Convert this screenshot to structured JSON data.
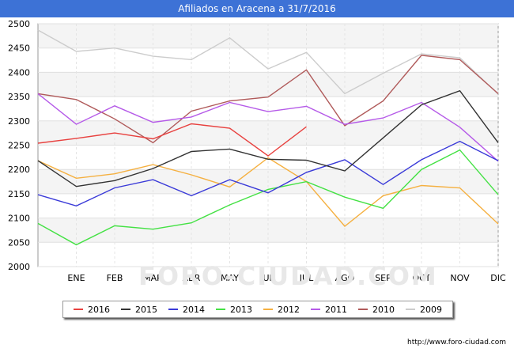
{
  "title": "Afiliados en Aracena a 31/7/2016",
  "watermark": "FORO-CIUDAD.COM",
  "source": "http://www.foro-ciudad.com",
  "chart_data": {
    "type": "line",
    "title": "Afiliados en Aracena a 31/7/2016",
    "xlabel": "",
    "ylabel": "",
    "categories": [
      "",
      "ENE",
      "FEB",
      "MAR",
      "ABR",
      "MAY",
      "JUN",
      "JUL",
      "AGO",
      "SEP",
      "OCT",
      "NOV",
      "DIC"
    ],
    "ylim": [
      2000,
      2500
    ],
    "yticks": [
      2000,
      2050,
      2100,
      2150,
      2200,
      2250,
      2300,
      2350,
      2400,
      2450,
      2500
    ],
    "grid": true,
    "legend_position": "bottom",
    "series": [
      {
        "name": "2016",
        "color": "#e8413f",
        "values": [
          2254,
          2264,
          2275,
          2263,
          2294,
          2285,
          2228,
          2288,
          null,
          null,
          null,
          null,
          null
        ]
      },
      {
        "name": "2015",
        "color": "#333333",
        "values": [
          2218,
          2165,
          2177,
          2202,
          2237,
          2242,
          2221,
          2219,
          2197,
          2265,
          2333,
          2362,
          2255
        ]
      },
      {
        "name": "2014",
        "color": "#3a3ad8",
        "values": [
          2148,
          2125,
          2162,
          2179,
          2146,
          2179,
          2152,
          2194,
          2220,
          2169,
          2220,
          2258,
          2218
        ]
      },
      {
        "name": "2013",
        "color": "#44e144",
        "values": [
          2089,
          2045,
          2084,
          2077,
          2090,
          2127,
          2159,
          2175,
          2143,
          2120,
          2200,
          2240,
          2148
        ]
      },
      {
        "name": "2012",
        "color": "#f5b040",
        "values": [
          2218,
          2182,
          2191,
          2210,
          2189,
          2164,
          2224,
          2175,
          2083,
          2146,
          2167,
          2162,
          2088
        ]
      },
      {
        "name": "2011",
        "color": "#b55ae8",
        "values": [
          2356,
          2293,
          2331,
          2297,
          2308,
          2338,
          2319,
          2330,
          2293,
          2306,
          2338,
          2287,
          2217
        ]
      },
      {
        "name": "2010",
        "color": "#b05a5a",
        "values": [
          2356,
          2344,
          2304,
          2255,
          2320,
          2341,
          2349,
          2405,
          2290,
          2341,
          2435,
          2426,
          2356
        ]
      },
      {
        "name": "2009",
        "color": "#cccccc",
        "values": [
          2487,
          2443,
          2450,
          2433,
          2426,
          2471,
          2407,
          2441,
          2356,
          2398,
          2438,
          2430,
          2355
        ]
      }
    ]
  }
}
